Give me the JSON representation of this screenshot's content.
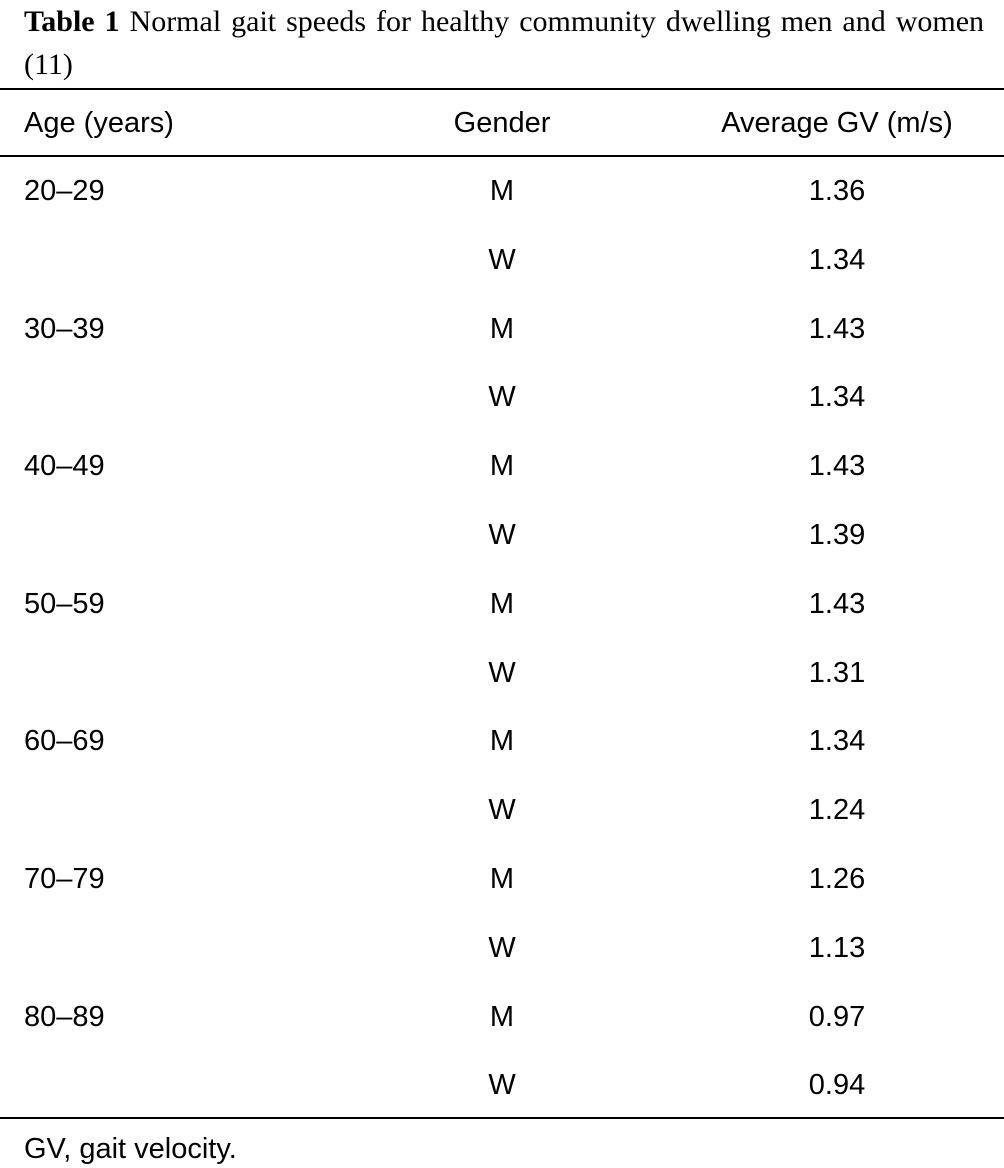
{
  "caption": {
    "label": "Table 1",
    "text": "Normal gait speeds for healthy community dwelling men and women (11)"
  },
  "columns": [
    "Age (years)",
    "Gender",
    "Average GV (m/s)"
  ],
  "rows": [
    {
      "age": "20–29",
      "gender": "M",
      "gv": "1.36"
    },
    {
      "age": "",
      "gender": "W",
      "gv": "1.34"
    },
    {
      "age": "30–39",
      "gender": "M",
      "gv": "1.43"
    },
    {
      "age": "",
      "gender": "W",
      "gv": "1.34"
    },
    {
      "age": "40–49",
      "gender": "M",
      "gv": "1.43"
    },
    {
      "age": "",
      "gender": "W",
      "gv": "1.39"
    },
    {
      "age": "50–59",
      "gender": "M",
      "gv": "1.43"
    },
    {
      "age": "",
      "gender": "W",
      "gv": "1.31"
    },
    {
      "age": "60–69",
      "gender": "M",
      "gv": "1.34"
    },
    {
      "age": "",
      "gender": "W",
      "gv": "1.24"
    },
    {
      "age": "70–79",
      "gender": "M",
      "gv": "1.26"
    },
    {
      "age": "",
      "gender": "W",
      "gv": "1.13"
    },
    {
      "age": "80–89",
      "gender": "M",
      "gv": "0.97"
    },
    {
      "age": "",
      "gender": "W",
      "gv": "0.94"
    }
  ],
  "footnote": "GV, gait velocity."
}
